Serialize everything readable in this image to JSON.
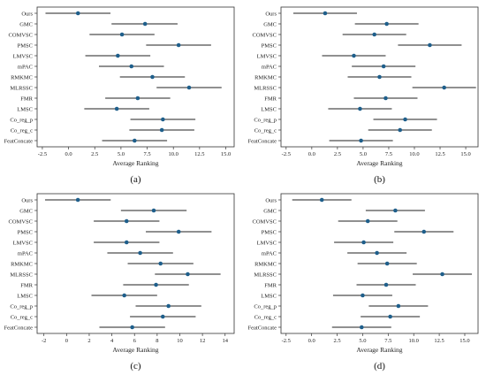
{
  "chart_data": [
    {
      "type": "scatter",
      "panel_label": "(a)",
      "xlabel": "Average Ranking",
      "xlim": [
        -3.0,
        15.8
      ],
      "xticks": [
        -2.5,
        0.0,
        2.5,
        5.0,
        7.5,
        10.0,
        12.5,
        15.0
      ],
      "xtick_labels": [
        "-2.5",
        "0.0",
        "2.5",
        "5.0",
        "7.5",
        "10.0",
        "12.5",
        "15.0"
      ],
      "categories": [
        "Ours",
        "GMC",
        "COMVSC",
        "PMSC",
        "LMVSC",
        "mPAC",
        "RMKMC",
        "MLRSSC",
        "FMR",
        "LMSC",
        "Co_reg_p",
        "Co_reg_c",
        "FeatConcate"
      ],
      "means": [
        0.9,
        7.3,
        5.1,
        10.5,
        4.7,
        6.0,
        8.0,
        11.5,
        6.6,
        4.6,
        9.0,
        8.9,
        6.3
      ],
      "lower": [
        -2.2,
        4.1,
        2.0,
        7.4,
        1.6,
        2.9,
        4.9,
        8.4,
        3.5,
        1.5,
        5.9,
        5.8,
        3.2
      ],
      "upper": [
        4.0,
        10.4,
        8.2,
        13.6,
        7.8,
        9.1,
        11.1,
        14.6,
        9.7,
        7.7,
        12.1,
        12.0,
        9.4
      ]
    },
    {
      "type": "scatter",
      "panel_label": "(b)",
      "xlabel": "Average Ranking",
      "xlim": [
        -3.0,
        16.2
      ],
      "xticks": [
        -2.5,
        0.0,
        2.5,
        5.0,
        7.5,
        10.0,
        12.5,
        15.0
      ],
      "xtick_labels": [
        "-2.5",
        "0.0",
        "2.5",
        "5.0",
        "7.5",
        "10.0",
        "12.5",
        "15.0"
      ],
      "categories": [
        "Ours",
        "GMC",
        "COMVSC",
        "PMSC",
        "LMVSC",
        "mPAC",
        "RMKMC",
        "MLRSSC",
        "FMR",
        "LMSC",
        "Co_reg_p",
        "Co_reg_c",
        "FeatConcate"
      ],
      "means": [
        1.3,
        7.3,
        6.1,
        11.5,
        4.1,
        7.0,
        6.6,
        12.9,
        7.2,
        4.7,
        9.1,
        8.6,
        4.8
      ],
      "lower": [
        -1.8,
        4.2,
        3.0,
        8.4,
        1.0,
        3.9,
        3.5,
        9.8,
        4.1,
        1.6,
        6.0,
        5.5,
        1.7
      ],
      "upper": [
        4.4,
        10.4,
        9.2,
        14.6,
        7.2,
        10.1,
        9.7,
        16.0,
        10.3,
        7.8,
        12.2,
        11.7,
        7.9
      ]
    },
    {
      "type": "scatter",
      "panel_label": "(c)",
      "xlabel": "Average Ranking",
      "xlim": [
        -2.6,
        14.8
      ],
      "xticks": [
        -2,
        0,
        2,
        4,
        6,
        8,
        10,
        12,
        14
      ],
      "xtick_labels": [
        "-2",
        "0",
        "2",
        "4",
        "6",
        "8",
        "10",
        "12",
        "14"
      ],
      "categories": [
        "Ours",
        "GMC",
        "COMVSC",
        "PMSC",
        "LMVSC",
        "mPAC",
        "RMKMC",
        "MLRSSC",
        "FMR",
        "LMSC",
        "Co_reg_p",
        "Co_reg_c",
        "FeatConcate"
      ],
      "means": [
        1.0,
        7.7,
        5.3,
        9.9,
        5.3,
        6.5,
        8.3,
        10.7,
        7.9,
        5.1,
        9.0,
        8.5,
        5.8
      ],
      "lower": [
        -1.9,
        4.8,
        2.4,
        7.0,
        2.4,
        3.6,
        5.4,
        7.8,
        5.0,
        2.2,
        6.1,
        5.6,
        2.9
      ],
      "upper": [
        3.9,
        10.6,
        8.2,
        12.8,
        8.2,
        9.4,
        11.2,
        13.6,
        10.8,
        8.0,
        11.9,
        11.4,
        8.7
      ]
    },
    {
      "type": "scatter",
      "panel_label": "(d)",
      "xlabel": "Average Ranking",
      "xlim": [
        -3.0,
        16.3
      ],
      "xticks": [
        -2.5,
        0.0,
        2.5,
        5.0,
        7.5,
        10.0,
        12.5,
        15.0
      ],
      "xtick_labels": [
        "-2.5",
        "0.0",
        "2.5",
        "5.0",
        "7.5",
        "10.0",
        "12.5",
        "15.0"
      ],
      "categories": [
        "Ours",
        "GMC",
        "COMVSC",
        "PMSC",
        "LMVSC",
        "mPAC",
        "RMKMC",
        "MLRSSC",
        "FMR",
        "LMSC",
        "Co_reg_p",
        "Co_reg_c",
        "FeatConcate"
      ],
      "means": [
        1.0,
        8.2,
        5.5,
        11.0,
        5.1,
        6.4,
        7.4,
        12.8,
        7.3,
        5.0,
        8.5,
        7.7,
        4.9
      ],
      "lower": [
        -1.9,
        5.3,
        2.6,
        8.1,
        2.2,
        3.5,
        4.5,
        9.9,
        4.4,
        2.1,
        5.6,
        4.8,
        2.0
      ],
      "upper": [
        3.9,
        11.1,
        8.4,
        13.9,
        8.0,
        9.3,
        10.3,
        15.7,
        10.2,
        7.9,
        11.4,
        10.6,
        7.8
      ]
    }
  ]
}
